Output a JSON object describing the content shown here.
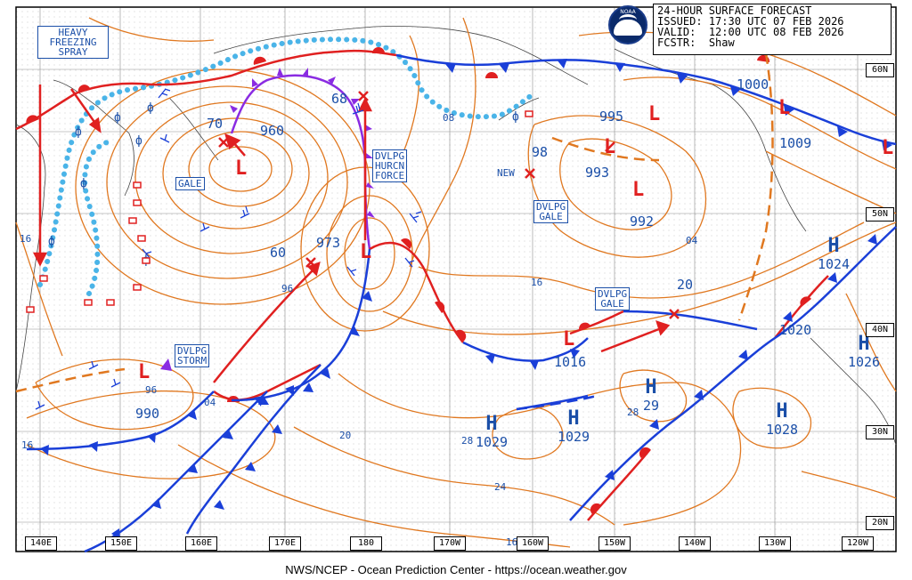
{
  "header": {
    "title": "24-HOUR SURFACE FORECAST",
    "issued_label": "ISSUED:",
    "issued": "17:30 UTC 07 FEB 2026",
    "valid_label": "VALID:",
    "valid": "12:00 UTC 08 FEB 2026",
    "fcstr_label": "FCSTR:",
    "fcstr": "Shaw"
  },
  "logo_text": "NOAA",
  "footer": "NWS/NCEP - Ocean Prediction Center - https://ocean.weather.gov",
  "longitude_labels": [
    "140E",
    "150E",
    "160E",
    "170E",
    "180",
    "170W",
    "160W",
    "150W",
    "140W",
    "130W",
    "120W"
  ],
  "latitude_labels": [
    "60N",
    "50N",
    "40N",
    "30N",
    "20N"
  ],
  "warning_boxes": [
    {
      "id": "heavy-freezing-spray",
      "text": "HEAVY\nFREEZING\nSPRAY",
      "color": "#1b4fa8"
    },
    {
      "id": "gale-west",
      "text": "GALE"
    },
    {
      "id": "dvlpg-hurcn-force",
      "text": "DVLPG\nHURCN\nFORCE"
    },
    {
      "id": "dvlpg-gale-gulf",
      "text": "DVLPG\nGALE"
    },
    {
      "id": "dvlpg-gale-central",
      "text": "DVLPG\nGALE"
    },
    {
      "id": "dvlpg-storm",
      "text": "DVLPG\nSTORM"
    }
  ],
  "pressure_centers": [
    {
      "type": "L",
      "value": "960",
      "color": "#e02020"
    },
    {
      "type": "L",
      "value": "973",
      "color": "#e02020"
    },
    {
      "type": "L",
      "value": "990",
      "color": "#e02020"
    },
    {
      "type": "L",
      "value": "993",
      "color": "#e02020"
    },
    {
      "type": "L",
      "value": "992",
      "color": "#e02020"
    },
    {
      "type": "L",
      "value": "995",
      "color": "#e02020"
    },
    {
      "type": "L",
      "value": "1000",
      "color": "#e02020"
    },
    {
      "type": "L",
      "value": "1009",
      "color": "#e02020"
    },
    {
      "type": "L",
      "value": "1016",
      "color": "#e02020"
    },
    {
      "type": "H",
      "value": "1029",
      "color": "#1b4fa8"
    },
    {
      "type": "H",
      "value": "1029",
      "color": "#1b4fa8"
    },
    {
      "type": "H",
      "value": "29",
      "prefix": "28",
      "color": "#1b4fa8"
    },
    {
      "type": "H",
      "value": "1028",
      "color": "#1b4fa8"
    },
    {
      "type": "H",
      "value": "1024",
      "color": "#1b4fa8"
    },
    {
      "type": "H",
      "value": "1026",
      "color": "#1b4fa8"
    }
  ],
  "x_markers": [
    "70",
    "68",
    "60",
    "98",
    "20"
  ],
  "x_marker_new_label": "NEW",
  "isobar_labels": [
    "96",
    "96",
    "04",
    "08",
    "16",
    "04",
    "20",
    "24",
    "16",
    "16",
    "28"
  ],
  "colors": {
    "isobar": "#e07820",
    "cold_front": "#1a3fd8",
    "warm_front": "#e02020",
    "occluded_front": "#8a2be2",
    "ice_edge": "#4ab4e8",
    "text_blue": "#1b4fa8",
    "low_red": "#e02020",
    "grid": "#333333"
  }
}
